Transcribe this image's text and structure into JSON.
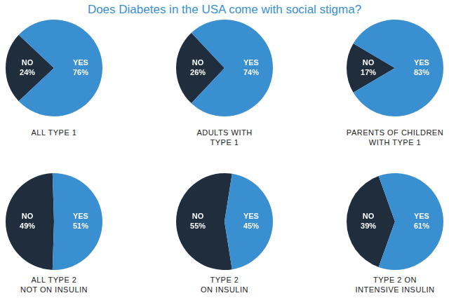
{
  "title": "Does Diabetes in the USA come with social stigma?",
  "chart_data": [
    {
      "type": "pie",
      "title": "ALL TYPE 1",
      "categories": [
        "NO",
        "YES"
      ],
      "values": [
        24,
        76
      ],
      "value_labels": [
        "24%",
        "76%"
      ],
      "colors": [
        "#1f2d3d",
        "#3a8fd1"
      ],
      "data_labels": true
    },
    {
      "type": "pie",
      "title": "ADULTS WITH\nTYPE 1",
      "categories": [
        "NO",
        "YES"
      ],
      "values": [
        26,
        74
      ],
      "value_labels": [
        "26%",
        "74%"
      ],
      "colors": [
        "#1f2d3d",
        "#3a8fd1"
      ],
      "data_labels": true
    },
    {
      "type": "pie",
      "title": "PARENTS OF CHILDREN\nWITH TYPE 1",
      "categories": [
        "NO",
        "YES"
      ],
      "values": [
        17,
        83
      ],
      "value_labels": [
        "17%",
        "83%"
      ],
      "colors": [
        "#1f2d3d",
        "#3a8fd1"
      ],
      "data_labels": true
    },
    {
      "type": "pie",
      "title": "ALL TYPE 2\nNOT ON INSULIN",
      "categories": [
        "NO",
        "YES"
      ],
      "values": [
        49,
        51
      ],
      "value_labels": [
        "49%",
        "51%"
      ],
      "colors": [
        "#1f2d3d",
        "#3a8fd1"
      ],
      "data_labels": true
    },
    {
      "type": "pie",
      "title": "TYPE 2\nON INSULIN",
      "categories": [
        "NO",
        "YES"
      ],
      "values": [
        55,
        45
      ],
      "value_labels": [
        "55%",
        "45%"
      ],
      "colors": [
        "#1f2d3d",
        "#3a8fd1"
      ],
      "data_labels": true
    },
    {
      "type": "pie",
      "title": "TYPE 2 ON\nINTENSIVE INSULIN",
      "categories": [
        "NO",
        "YES"
      ],
      "values": [
        39,
        61
      ],
      "value_labels": [
        "39%",
        "61%"
      ],
      "colors": [
        "#1f2d3d",
        "#3a8fd1"
      ],
      "data_labels": true
    }
  ]
}
